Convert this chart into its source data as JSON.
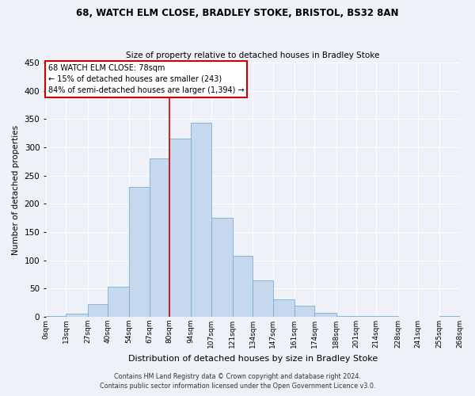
{
  "title": "68, WATCH ELM CLOSE, BRADLEY STOKE, BRISTOL, BS32 8AN",
  "subtitle": "Size of property relative to detached houses in Bradley Stoke",
  "xlabel": "Distribution of detached houses by size in Bradley Stoke",
  "ylabel": "Number of detached properties",
  "bar_color": "#c5d8ee",
  "bar_edge_color": "#7aadd4",
  "background_color": "#eef2f8",
  "grid_color": "#ffffff",
  "bin_labels": [
    "0sqm",
    "13sqm",
    "27sqm",
    "40sqm",
    "54sqm",
    "67sqm",
    "80sqm",
    "94sqm",
    "107sqm",
    "121sqm",
    "134sqm",
    "147sqm",
    "161sqm",
    "174sqm",
    "188sqm",
    "201sqm",
    "214sqm",
    "228sqm",
    "241sqm",
    "255sqm",
    "268sqm"
  ],
  "bin_edges": [
    0,
    13,
    27,
    40,
    54,
    67,
    80,
    94,
    107,
    121,
    134,
    147,
    161,
    174,
    188,
    201,
    214,
    228,
    241,
    255,
    268
  ],
  "bar_heights": [
    2,
    6,
    22,
    53,
    230,
    280,
    316,
    343,
    175,
    108,
    64,
    31,
    19,
    7,
    2,
    1,
    1,
    0,
    0,
    2
  ],
  "ylim": [
    0,
    450
  ],
  "yticks": [
    0,
    50,
    100,
    150,
    200,
    250,
    300,
    350,
    400,
    450
  ],
  "vline_x": 80,
  "vline_color": "#cc0000",
  "annotation_title": "68 WATCH ELM CLOSE: 78sqm",
  "annotation_line1": "← 15% of detached houses are smaller (243)",
  "annotation_line2": "84% of semi-detached houses are larger (1,394) →",
  "annotation_box_color": "#ffffff",
  "annotation_box_edge": "#cc0000",
  "footer1": "Contains HM Land Registry data © Crown copyright and database right 2024.",
  "footer2": "Contains public sector information licensed under the Open Government Licence v3.0."
}
